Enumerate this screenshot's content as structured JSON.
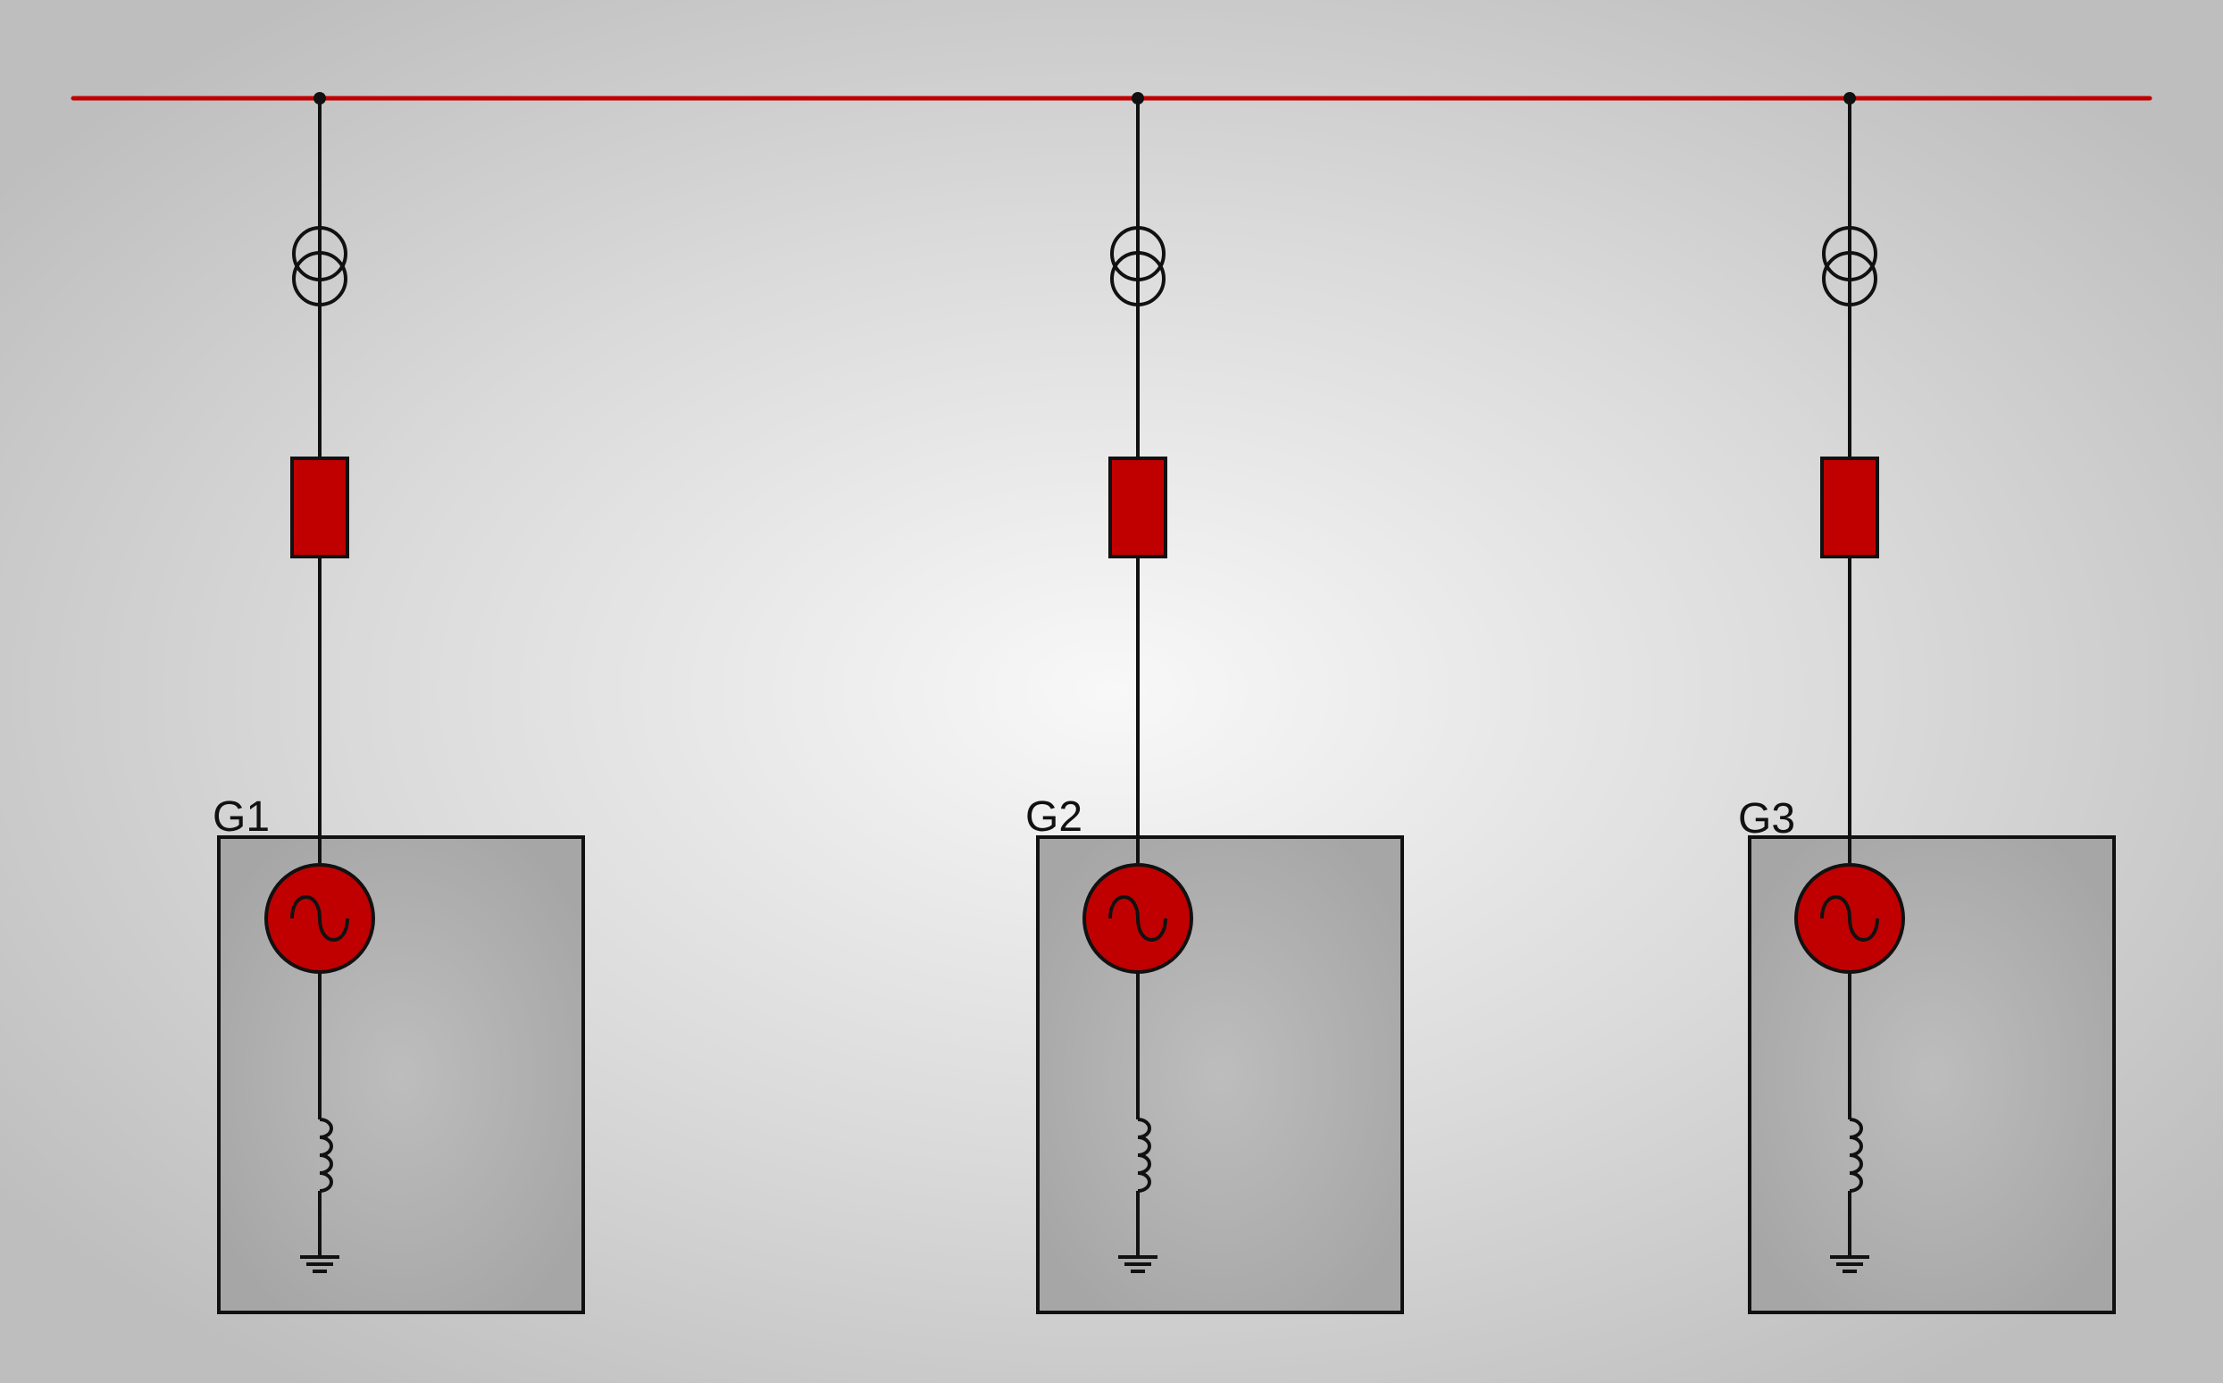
{
  "colors": {
    "bus": "#c00000",
    "component_fill": "#c00000",
    "line": "#111111",
    "generator_box_fill": "#a9a9a9"
  },
  "icons": {
    "transformer": "double-circle-transformer-icon",
    "breaker": "red-rectangle-breaker-icon",
    "generator": "ac-generator-sine-icon",
    "reactor": "coil-inductor-icon",
    "ground": "ground-icon"
  },
  "generators": [
    {
      "label": "G1"
    },
    {
      "label": "G2"
    },
    {
      "label": "G3"
    }
  ]
}
